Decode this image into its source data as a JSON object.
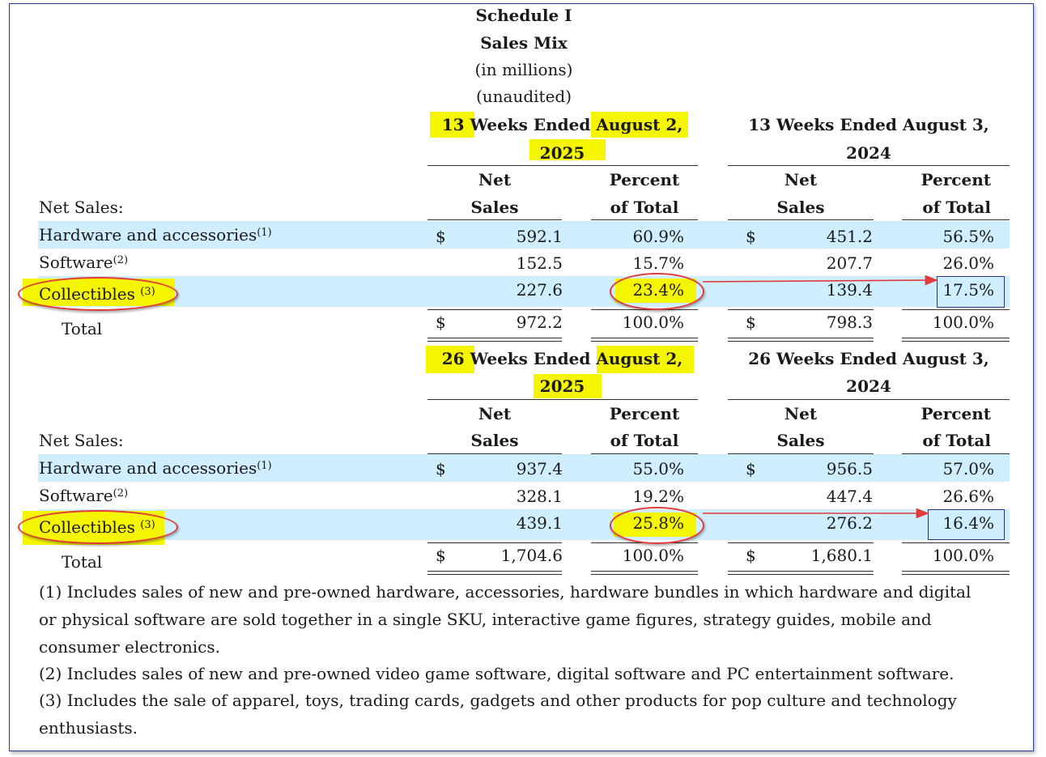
{
  "header": {
    "title": "Schedule I",
    "subtitle": "Sales Mix",
    "units": "(in millions)",
    "audit_status": "(unaudited)"
  },
  "q13": {
    "period_current_line1": "13 Weeks Ended August 2,",
    "period_current_line2": "2025",
    "period_prior_line1": "13 Weeks Ended August 3,",
    "period_prior_line2": "2024",
    "col_net": "Net",
    "col_sales": "Sales",
    "col_percent": "Percent",
    "col_of_total": "of Total",
    "section_label": "Net Sales:",
    "rows": [
      {
        "label": "Hardware and accessories",
        "note": "(1)",
        "dollar_cur": "$",
        "net_cur": "592.1",
        "pct_cur": "60.9%",
        "dollar_prior": "$",
        "net_prior": "451.2",
        "pct_prior": "56.5%"
      },
      {
        "label": "Software",
        "note": "(2)",
        "dollar_cur": "",
        "net_cur": "152.5",
        "pct_cur": "15.7%",
        "dollar_prior": "",
        "net_prior": "207.7",
        "pct_prior": "26.0%"
      },
      {
        "label": "Collectibles ",
        "note": "(3)",
        "dollar_cur": "",
        "net_cur": "227.6",
        "pct_cur": "23.4%",
        "dollar_prior": "",
        "net_prior": "139.4",
        "pct_prior": "17.5%"
      }
    ],
    "total": {
      "label": "Total",
      "dollar_cur": "$",
      "net_cur": "972.2",
      "pct_cur": "100.0%",
      "dollar_prior": "$",
      "net_prior": "798.3",
      "pct_prior": "100.0%"
    }
  },
  "q26": {
    "period_current_line1": "26 Weeks Ended August 2,",
    "period_current_line2": "2025",
    "period_prior_line1": "26 Weeks Ended August 3,",
    "period_prior_line2": "2024",
    "col_net": "Net",
    "col_sales": "Sales",
    "col_percent": "Percent",
    "col_of_total": "of Total",
    "section_label": "Net Sales:",
    "rows": [
      {
        "label": "Hardware and accessories",
        "note": "(1)",
        "dollar_cur": "$",
        "net_cur": "937.4",
        "pct_cur": "55.0%",
        "dollar_prior": "$",
        "net_prior": "956.5",
        "pct_prior": "57.0%"
      },
      {
        "label": "Software",
        "note": "(2)",
        "dollar_cur": "",
        "net_cur": "328.1",
        "pct_cur": "19.2%",
        "dollar_prior": "",
        "net_prior": "447.4",
        "pct_prior": "26.6%"
      },
      {
        "label": "Collectibles ",
        "note": "(3)",
        "dollar_cur": "",
        "net_cur": "439.1",
        "pct_cur": "25.8%",
        "dollar_prior": "",
        "net_prior": "276.2",
        "pct_prior": "16.4%"
      }
    ],
    "total": {
      "label": "Total",
      "dollar_cur": "$",
      "net_cur": "1,704.6",
      "pct_cur": "100.0%",
      "dollar_prior": "$",
      "net_prior": "1,680.1",
      "pct_prior": "100.0%"
    }
  },
  "footnotes": [
    "(1) Includes sales of new and pre-owned hardware, accessories, hardware bundles in which hardware and digital or physical software are sold together in a single SKU, interactive game figures, strategy guides, mobile and consumer electronics.",
    "(2) Includes sales of new and pre-owned video game software, digital software and PC entertainment software.",
    "(3) Includes the sale of apparel, toys, trading cards, gadgets and other products for pop culture and technology enthusiasts."
  ],
  "colors": {
    "row_band": "#cfeeff",
    "highlight": "#f5f500",
    "annotation_red": "#e23a3a",
    "annotation_box": "#28348e"
  }
}
